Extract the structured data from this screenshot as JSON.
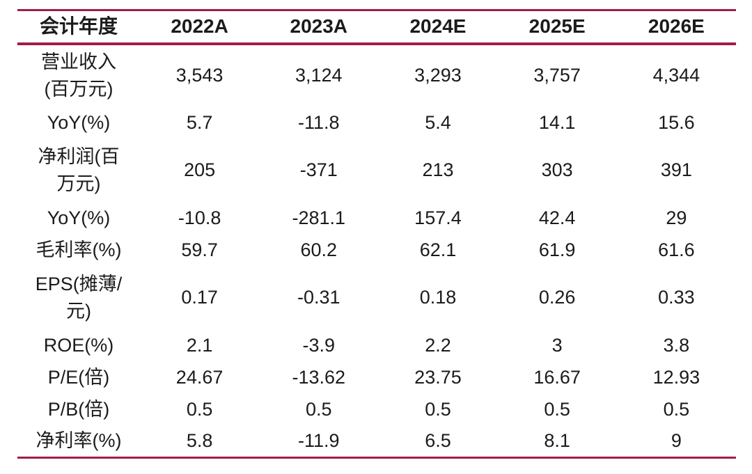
{
  "accent_color": "#a01e48",
  "text_color": "#1b1b1b",
  "chart_data": {
    "type": "table",
    "title": "",
    "columns": [
      "会计年度",
      "2022A",
      "2023A",
      "2024E",
      "2025E",
      "2026E"
    ],
    "rows": [
      {
        "label": "营业收入\n(百万元)",
        "values": [
          "3,543",
          "3,124",
          "3,293",
          "3,757",
          "4,344"
        ]
      },
      {
        "label": "YoY(%)",
        "values": [
          "5.7",
          "-11.8",
          "5.4",
          "14.1",
          "15.6"
        ]
      },
      {
        "label": "净利润(百\n万元)",
        "values": [
          "205",
          "-371",
          "213",
          "303",
          "391"
        ]
      },
      {
        "label": "YoY(%)",
        "values": [
          "-10.8",
          "-281.1",
          "157.4",
          "42.4",
          "29"
        ]
      },
      {
        "label": "毛利率(%)",
        "values": [
          "59.7",
          "60.2",
          "62.1",
          "61.9",
          "61.6"
        ]
      },
      {
        "label": "EPS(摊薄/\n元)",
        "values": [
          "0.17",
          "-0.31",
          "0.18",
          "0.26",
          "0.33"
        ]
      },
      {
        "label": "ROE(%)",
        "values": [
          "2.1",
          "-3.9",
          "2.2",
          "3",
          "3.8"
        ]
      },
      {
        "label": "P/E(倍)",
        "values": [
          "24.67",
          "-13.62",
          "23.75",
          "16.67",
          "12.93"
        ]
      },
      {
        "label": "P/B(倍)",
        "values": [
          "0.5",
          "0.5",
          "0.5",
          "0.5",
          "0.5"
        ]
      },
      {
        "label": "净利率(%)",
        "values": [
          "5.8",
          "-11.9",
          "6.5",
          "8.1",
          "9"
        ]
      }
    ]
  }
}
